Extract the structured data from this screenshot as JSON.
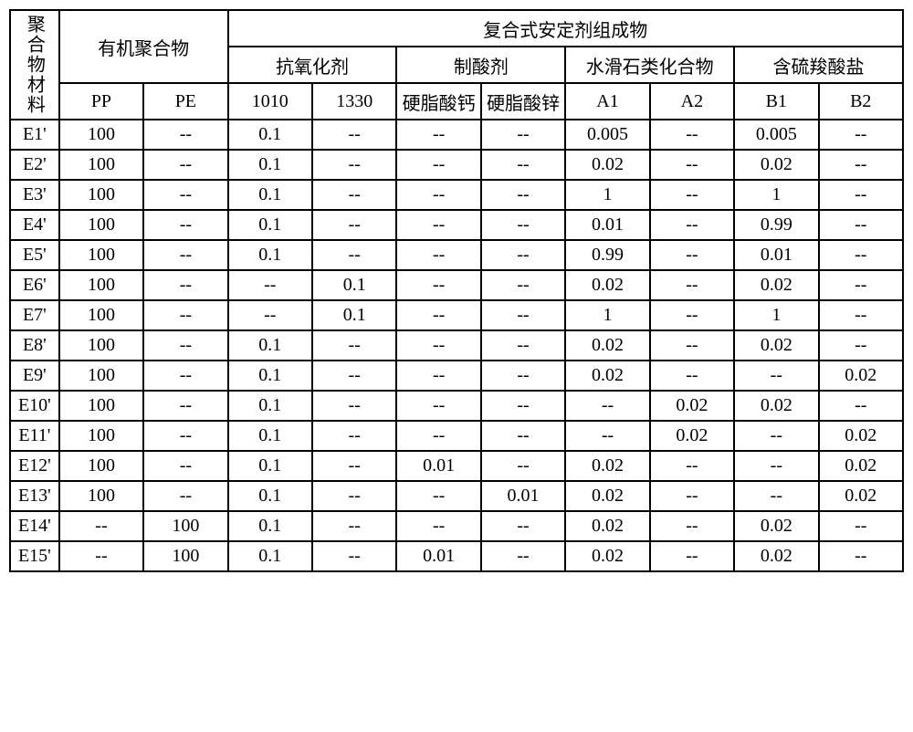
{
  "headers": {
    "material": "聚合物材料",
    "organic_polymer": "有机聚合物",
    "stabilizer": "复合式安定剂组成物",
    "antioxidant": "抗氧化剂",
    "acid_neutralizer": "制酸剂",
    "hydrotalcite": "水滑石类化合物",
    "sulfur_salt": "含硫羧酸盐",
    "pp": "PP",
    "pe": "PE",
    "a1010": "1010",
    "a1330": "1330",
    "ca_stearate": "硬脂酸钙",
    "zn_stearate": "硬脂酸锌",
    "A1": "A1",
    "A2": "A2",
    "B1": "B1",
    "B2": "B2"
  },
  "rows": [
    {
      "id": "E1'",
      "pp": "100",
      "pe": "--",
      "a1010": "0.1",
      "a1330": "--",
      "ca": "--",
      "zn": "--",
      "A1": "0.005",
      "A2": "--",
      "B1": "0.005",
      "B2": "--"
    },
    {
      "id": "E2'",
      "pp": "100",
      "pe": "--",
      "a1010": "0.1",
      "a1330": "--",
      "ca": "--",
      "zn": "--",
      "A1": "0.02",
      "A2": "--",
      "B1": "0.02",
      "B2": "--"
    },
    {
      "id": "E3'",
      "pp": "100",
      "pe": "--",
      "a1010": "0.1",
      "a1330": "--",
      "ca": "--",
      "zn": "--",
      "A1": "1",
      "A2": "--",
      "B1": "1",
      "B2": "--"
    },
    {
      "id": "E4'",
      "pp": "100",
      "pe": "--",
      "a1010": "0.1",
      "a1330": "--",
      "ca": "--",
      "zn": "--",
      "A1": "0.01",
      "A2": "--",
      "B1": "0.99",
      "B2": "--"
    },
    {
      "id": "E5'",
      "pp": "100",
      "pe": "--",
      "a1010": "0.1",
      "a1330": "--",
      "ca": "--",
      "zn": "--",
      "A1": "0.99",
      "A2": "--",
      "B1": "0.01",
      "B2": "--"
    },
    {
      "id": "E6'",
      "pp": "100",
      "pe": "--",
      "a1010": "--",
      "a1330": "0.1",
      "ca": "--",
      "zn": "--",
      "A1": "0.02",
      "A2": "--",
      "B1": "0.02",
      "B2": "--"
    },
    {
      "id": "E7'",
      "pp": "100",
      "pe": "--",
      "a1010": "--",
      "a1330": "0.1",
      "ca": "--",
      "zn": "--",
      "A1": "1",
      "A2": "--",
      "B1": "1",
      "B2": "--"
    },
    {
      "id": "E8'",
      "pp": "100",
      "pe": "--",
      "a1010": "0.1",
      "a1330": "--",
      "ca": "--",
      "zn": "--",
      "A1": "0.02",
      "A2": "--",
      "B1": "0.02",
      "B2": "--"
    },
    {
      "id": "E9'",
      "pp": "100",
      "pe": "--",
      "a1010": "0.1",
      "a1330": "--",
      "ca": "--",
      "zn": "--",
      "A1": "0.02",
      "A2": "--",
      "B1": "--",
      "B2": "0.02"
    },
    {
      "id": "E10'",
      "pp": "100",
      "pe": "--",
      "a1010": "0.1",
      "a1330": "--",
      "ca": "--",
      "zn": "--",
      "A1": "--",
      "A2": "0.02",
      "B1": "0.02",
      "B2": "--"
    },
    {
      "id": "E11'",
      "pp": "100",
      "pe": "--",
      "a1010": "0.1",
      "a1330": "--",
      "ca": "--",
      "zn": "--",
      "A1": "--",
      "A2": "0.02",
      "B1": "--",
      "B2": "0.02"
    },
    {
      "id": "E12'",
      "pp": "100",
      "pe": "--",
      "a1010": "0.1",
      "a1330": "--",
      "ca": "0.01",
      "zn": "--",
      "A1": "0.02",
      "A2": "--",
      "B1": "--",
      "B2": "0.02"
    },
    {
      "id": "E13'",
      "pp": "100",
      "pe": "--",
      "a1010": "0.1",
      "a1330": "--",
      "ca": "--",
      "zn": "0.01",
      "A1": "0.02",
      "A2": "--",
      "B1": "--",
      "B2": "0.02"
    },
    {
      "id": "E14'",
      "pp": "--",
      "pe": "100",
      "a1010": "0.1",
      "a1330": "--",
      "ca": "--",
      "zn": "--",
      "A1": "0.02",
      "A2": "--",
      "B1": "0.02",
      "B2": "--"
    },
    {
      "id": "E15'",
      "pp": "--",
      "pe": "100",
      "a1010": "0.1",
      "a1330": "--",
      "ca": "0.01",
      "zn": "--",
      "A1": "0.02",
      "A2": "--",
      "B1": "0.02",
      "B2": "--"
    }
  ],
  "style": {
    "border_color": "#000000",
    "background": "#ffffff",
    "font_size": 20,
    "font_family": "SimSun"
  }
}
